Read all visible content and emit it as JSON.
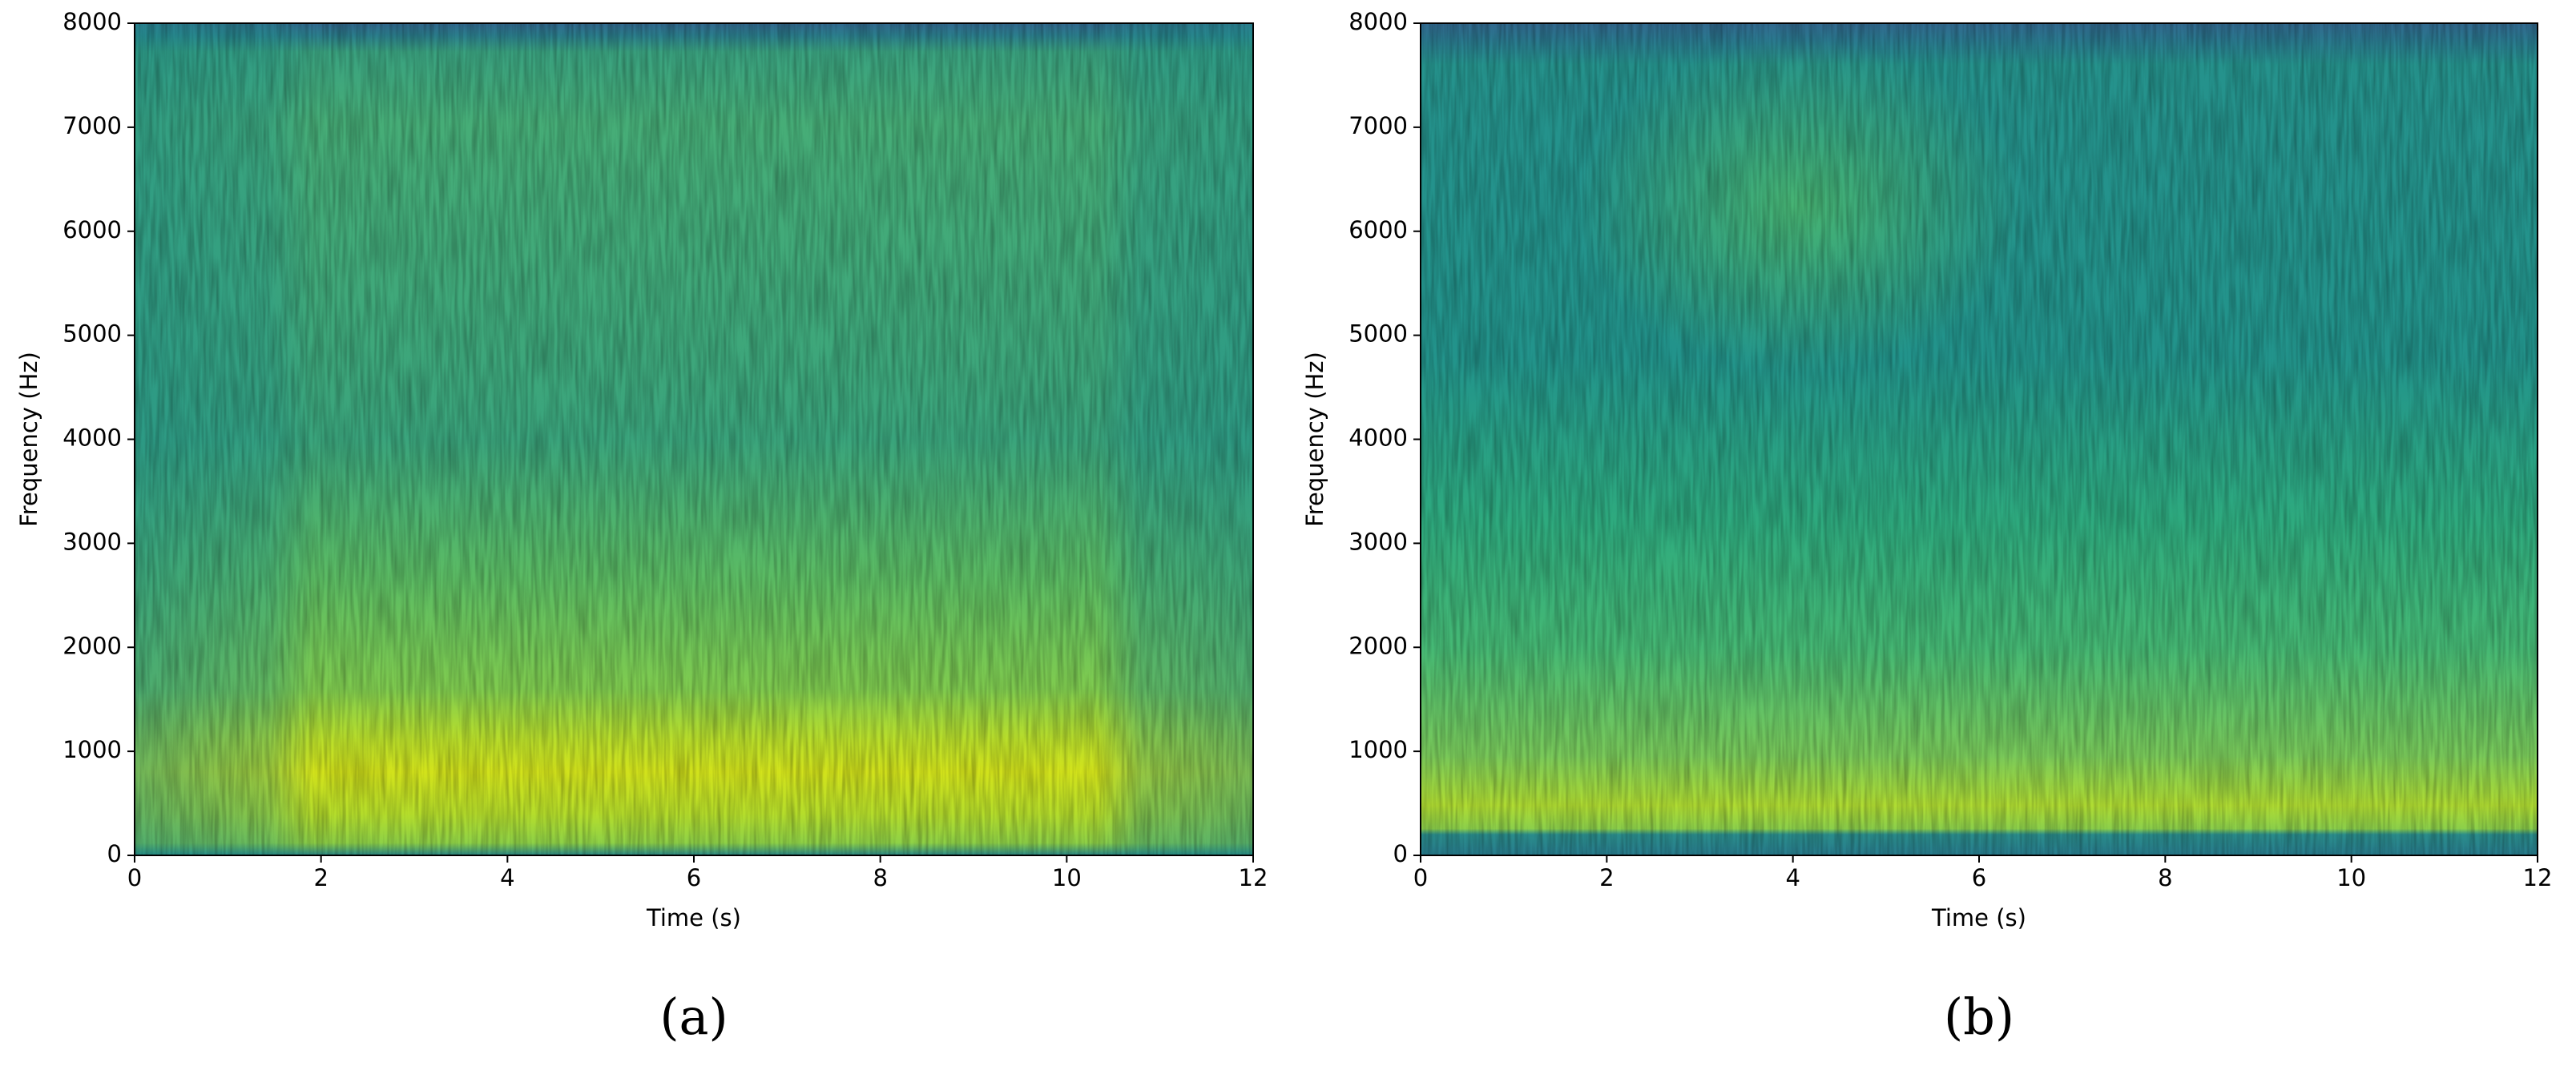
{
  "chart_data": [
    {
      "type": "spectrogram",
      "caption": "(a)",
      "xlabel": "Time (s)",
      "ylabel": "Frequency (Hz)",
      "xlim": [
        0,
        12
      ],
      "ylim": [
        0,
        8000
      ],
      "xticks": [
        0,
        2,
        4,
        6,
        8,
        10,
        12
      ],
      "yticks": [
        0,
        1000,
        2000,
        3000,
        4000,
        5000,
        6000,
        7000,
        8000
      ]
    },
    {
      "type": "spectrogram",
      "caption": "(b)",
      "xlabel": "Time (s)",
      "ylabel": "Frequency (Hz)",
      "xlim": [
        0,
        12
      ],
      "ylim": [
        0,
        8000
      ],
      "xticks": [
        0,
        2,
        4,
        6,
        8,
        10,
        12
      ],
      "yticks": [
        0,
        1000,
        2000,
        3000,
        4000,
        5000,
        6000,
        7000,
        8000
      ]
    }
  ]
}
